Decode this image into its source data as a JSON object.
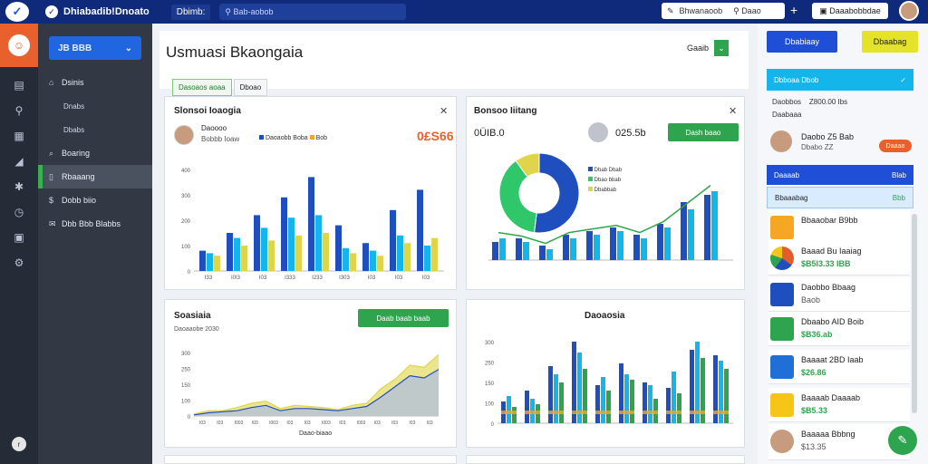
{
  "topbar": {
    "title": "Dhiabadib!Dnoato",
    "tab": "Dbimb:",
    "search_placeholder": "Bab-aobob",
    "right_search": "Bhwanaoob",
    "right_search_btn": "Daao",
    "action_btn": "Daaabobbdae",
    "plus": "+"
  },
  "sidebar": {
    "selector_label": "JB BBB",
    "items": [
      {
        "label": "Dsinis",
        "icon": "home-icon",
        "sub": false
      },
      {
        "label": "Dnabs",
        "icon": "",
        "sub": true
      },
      {
        "label": "Dbabs",
        "icon": "",
        "sub": true
      },
      {
        "label": "Boaring",
        "icon": "bell-icon",
        "sub": false
      },
      {
        "label": "Rbaaang",
        "icon": "document-icon",
        "sub": false,
        "active": true
      },
      {
        "label": "Dobb biio",
        "icon": "money-icon",
        "sub": false
      },
      {
        "label": "Dbb Bbb Blabbs",
        "icon": "mail-icon",
        "sub": false
      }
    ]
  },
  "rail": {
    "icons": [
      "list-icon",
      "search-icon",
      "table-icon",
      "chart-icon",
      "settings-icon",
      "clock-icon",
      "book-icon",
      "gear-icon"
    ],
    "bottom": "r"
  },
  "main": {
    "title": "Usmuasi Bkaongaia",
    "header_btn": "Gaaib",
    "tabs": [
      "Dasoaos aoaa",
      "Dboao"
    ]
  },
  "card1": {
    "title": "Slonsoi Ioaogia",
    "person_name": "Daoooo",
    "person_sub": "Bobbb Ioaw",
    "legend": "Daoaobb Boba",
    "legend2": "Bob",
    "stat": "0£S66"
  },
  "card2": {
    "title": "Bonsoo Iiitang",
    "stat1": "0ÜIB.0",
    "stat2": "025.5b",
    "btn": "Dash baao",
    "legend": [
      "Dbab Dbab",
      "Dbao bbab",
      "Dbabbab"
    ]
  },
  "card3": {
    "title": "Soasiaia",
    "subtitle": "Daoaaobe 2030",
    "btn": "Daab baab baab",
    "xlabel": "Daao-biaao"
  },
  "card4": {
    "title": "Daoaosia"
  },
  "chart_data": [
    {
      "type": "bar",
      "categories": [
        "1",
        "2",
        "3",
        "4",
        "5",
        "6",
        "7",
        "8",
        "9"
      ],
      "ylim": [
        0,
        4000
      ],
      "yticks": [
        "0",
        "100",
        "200",
        "300",
        "400"
      ],
      "x_ticks": [
        "I33",
        "I0I3",
        "I03",
        "I333",
        "I233",
        "I303",
        "I03",
        "I03",
        "I03"
      ],
      "series": [
        {
          "values": [
            800,
            1500,
            2200,
            2900,
            3700,
            1800,
            1100,
            2400,
            3200
          ]
        },
        {
          "values": [
            700,
            1300,
            1700,
            2100,
            2200,
            900,
            800,
            1400,
            1000
          ]
        },
        {
          "values": [
            600,
            1000,
            1200,
            1400,
            1500,
            700,
            600,
            1100,
            1300
          ]
        }
      ]
    },
    {
      "type": "pie",
      "values": [
        52,
        38,
        10
      ]
    },
    {
      "type": "bar",
      "categories": [
        "1",
        "2",
        "3",
        "4",
        "5",
        "6",
        "7",
        "8",
        "9",
        "10"
      ],
      "series": [
        {
          "values": [
            25,
            30,
            20,
            35,
            40,
            45,
            35,
            50,
            80,
            90
          ]
        },
        {
          "values": [
            30,
            25,
            15,
            30,
            35,
            40,
            30,
            45,
            70,
            95
          ]
        }
      ]
    },
    {
      "type": "area",
      "yticks": [
        "0",
        "100",
        "150",
        "250",
        "300"
      ],
      "x_ticks": [
        "I03",
        "I03",
        "I003",
        "I03",
        "I003",
        "I03",
        "I03",
        "I003",
        "I03",
        "I003",
        "I03",
        "I03",
        "I03",
        "I03"
      ],
      "series": [
        {
          "values": [
            2,
            5,
            5,
            8,
            12,
            14,
            7,
            10,
            9,
            8,
            6,
            10,
            12,
            26,
            35,
            48,
            46,
            58
          ]
        },
        {
          "values": [
            1,
            3,
            4,
            5,
            8,
            10,
            5,
            7,
            7,
            6,
            5,
            7,
            9,
            18,
            28,
            38,
            36,
            44
          ]
        }
      ]
    },
    {
      "type": "bar",
      "yticks": [
        "0",
        "100",
        "150",
        "250",
        "300"
      ],
      "categories": [
        "1",
        "2",
        "3",
        "4",
        "5",
        "6",
        "7",
        "8",
        "9",
        "10"
      ],
      "series": [
        {
          "values": [
            80,
            120,
            210,
            300,
            140,
            220,
            150,
            130,
            270,
            250
          ]
        },
        {
          "values": [
            100,
            90,
            180,
            260,
            170,
            180,
            140,
            190,
            300,
            230
          ]
        },
        {
          "values": [
            60,
            70,
            150,
            200,
            120,
            160,
            90,
            110,
            240,
            200
          ]
        }
      ]
    }
  ],
  "right": {
    "btn_blue": "Dbabiaay",
    "btn_yellow": "Dbaabag",
    "row1": "Dbboaa Dbob",
    "row2_a": "Daobbos",
    "row2_b": "Z800.00 Ibs",
    "row3": "Daabaaa",
    "person": "Daobo Z5 Bab",
    "person_sub": "Dbabo ZZ",
    "person_btn": "Daaaa",
    "band1_left": "Daaaab",
    "band1_right": "Blab",
    "band2_left": "Bbaaabag",
    "band2_right": "Bbb",
    "list": [
      {
        "name": "Bbaaobar B9bb",
        "val": "",
        "icon_color": "#f5a623"
      },
      {
        "name": "Baaad Bu Iaaiag",
        "val": "$B5I3.33 IBB",
        "icon_color": "#e25c2c"
      },
      {
        "name": "Daobbo Bbaag",
        "val": "Baob",
        "icon_color": "#1f4fbf",
        "gray": true
      },
      {
        "name": "Dbaabo AID Boib",
        "val": "$B36.ab",
        "icon_color": "#2ea44f"
      },
      {
        "name": "Baaaat 2BD Iaab",
        "val": "$26.86",
        "icon_color": "#1f6fd6"
      },
      {
        "name": "Baaaab Daaaab",
        "val": "$B5.33",
        "icon_color": "#f5c518"
      },
      {
        "name": "Baaaaa Bbbng",
        "val": "$13.35",
        "icon_color": "#c79b7e",
        "gray": true
      }
    ]
  }
}
